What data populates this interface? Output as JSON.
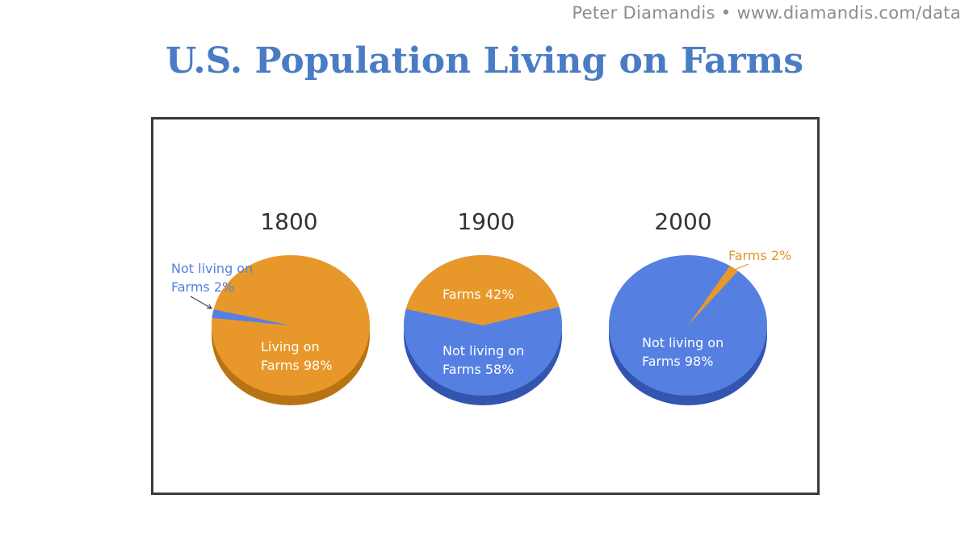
{
  "header": {
    "credit": "Peter Diamandis  •  www.diamandis.com/data",
    "title": "U.S. Population Living on Farms"
  },
  "colors": {
    "farms": "#e8982a",
    "farms_dark": "#b87414",
    "not_farms": "#5580e2",
    "not_farms_dark": "#3355b0"
  },
  "chart_data": [
    {
      "type": "pie",
      "title": "1800",
      "slices": [
        {
          "name": "Living on Farms",
          "value": 98
        },
        {
          "name": "Not living on Farms",
          "value": 2
        }
      ],
      "labels": {
        "farms_l1": "Living on",
        "farms_l2": "Farms 98%",
        "not_l1": "Not living on",
        "not_l2": "Farms 2%"
      }
    },
    {
      "type": "pie",
      "title": "1900",
      "slices": [
        {
          "name": "Farms",
          "value": 42
        },
        {
          "name": "Not living on Farms",
          "value": 58
        }
      ],
      "labels": {
        "farms_l1": "Farms 42%",
        "not_l1": "Not living on",
        "not_l2": "Farms 58%"
      }
    },
    {
      "type": "pie",
      "title": "2000",
      "slices": [
        {
          "name": "Farms",
          "value": 2
        },
        {
          "name": "Not living on Farms",
          "value": 98
        }
      ],
      "labels": {
        "farms_l1": "Farms 2%",
        "not_l1": "Not living on",
        "not_l2": "Farms 98%"
      }
    }
  ]
}
